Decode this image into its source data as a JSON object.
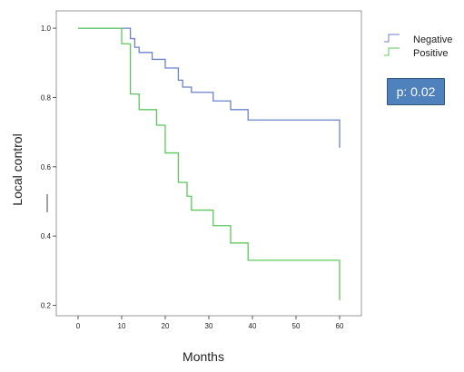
{
  "chart_data": {
    "type": "line",
    "step": true,
    "xlabel": "Months",
    "ylabel": "Local control",
    "xlim": [
      -5,
      65
    ],
    "ylim": [
      0.17,
      1.05
    ],
    "x_ticks": [
      0,
      10,
      20,
      30,
      40,
      50,
      60
    ],
    "x_tick_labels": [
      "0",
      "10",
      "20",
      "30",
      "40",
      "50",
      "60"
    ],
    "y_ticks": [
      0.2,
      0.4,
      0.6,
      0.8,
      1.0
    ],
    "y_tick_labels": [
      "0.2",
      "0.4",
      "0.6",
      "0.8",
      "1.0"
    ],
    "grid": false,
    "legend_position": "top-right",
    "series": [
      {
        "name": "Negative",
        "color": "#6b83c9",
        "x": [
          0,
          12,
          13,
          14,
          17,
          20,
          23,
          24,
          26,
          31,
          35,
          39,
          60,
          60
        ],
        "y": [
          1.0,
          0.97,
          0.945,
          0.93,
          0.91,
          0.885,
          0.85,
          0.83,
          0.815,
          0.79,
          0.765,
          0.735,
          0.735,
          0.655
        ]
      },
      {
        "name": "Positive",
        "color": "#5cc85c",
        "x": [
          0,
          10,
          12,
          14,
          18,
          20,
          23,
          25,
          26,
          31,
          35,
          39,
          60,
          60
        ],
        "y": [
          1.0,
          0.955,
          0.81,
          0.765,
          0.72,
          0.64,
          0.555,
          0.515,
          0.475,
          0.43,
          0.38,
          0.33,
          0.33,
          0.215
        ]
      }
    ],
    "annotation": {
      "text": "p: 0.02",
      "background": "#4f81bd"
    }
  }
}
